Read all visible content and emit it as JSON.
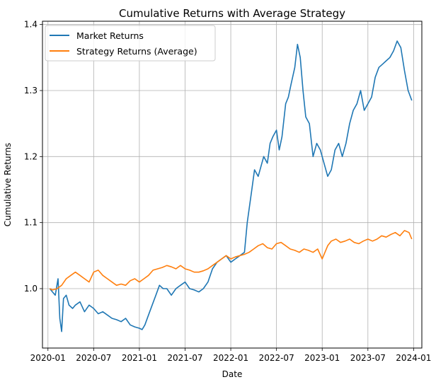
{
  "chart_data": {
    "type": "line",
    "title": "Cumulative Returns with Average Strategy",
    "xlabel": "Date",
    "ylabel": "Cumulative Returns",
    "xlim": [
      2019.94,
      2024.09
    ],
    "ylim": [
      0.91,
      1.405
    ],
    "grid": true,
    "legend_position": "top-left",
    "x_ticks": [
      {
        "value": 2020.0,
        "label": "2020-01"
      },
      {
        "value": 2020.5,
        "label": "2020-07"
      },
      {
        "value": 2021.0,
        "label": "2021-01"
      },
      {
        "value": 2021.5,
        "label": "2021-07"
      },
      {
        "value": 2022.0,
        "label": "2022-01"
      },
      {
        "value": 2022.5,
        "label": "2022-07"
      },
      {
        "value": 2023.0,
        "label": "2023-01"
      },
      {
        "value": 2023.5,
        "label": "2023-07"
      },
      {
        "value": 2024.0,
        "label": "2024-01"
      }
    ],
    "y_ticks": [
      {
        "value": 1.0,
        "label": "1.0"
      },
      {
        "value": 1.1,
        "label": "1.1"
      },
      {
        "value": 1.2,
        "label": "1.2"
      },
      {
        "value": 1.3,
        "label": "1.3"
      },
      {
        "value": 1.4,
        "label": "1.4"
      }
    ],
    "series": [
      {
        "name": "Market Returns",
        "color": "#1f77b4",
        "x": [
          2020.02,
          2020.05,
          2020.08,
          2020.11,
          2020.13,
          2020.15,
          2020.17,
          2020.2,
          2020.23,
          2020.27,
          2020.3,
          2020.35,
          2020.4,
          2020.45,
          2020.5,
          2020.55,
          2020.6,
          2020.65,
          2020.7,
          2020.75,
          2020.8,
          2020.85,
          2020.9,
          2020.95,
          2021.0,
          2021.03,
          2021.06,
          2021.1,
          2021.14,
          2021.18,
          2021.22,
          2021.26,
          2021.3,
          2021.35,
          2021.4,
          2021.45,
          2021.5,
          2021.55,
          2021.6,
          2021.65,
          2021.7,
          2021.75,
          2021.8,
          2021.85,
          2021.9,
          2021.95,
          2022.0,
          2022.05,
          2022.1,
          2022.15,
          2022.18,
          2022.2,
          2022.23,
          2022.26,
          2022.3,
          2022.33,
          2022.36,
          2022.4,
          2022.43,
          2022.46,
          2022.5,
          2022.53,
          2022.56,
          2022.6,
          2022.63,
          2022.66,
          2022.7,
          2022.73,
          2022.76,
          2022.79,
          2022.82,
          2022.86,
          2022.9,
          2022.94,
          2022.98,
          2023.02,
          2023.06,
          2023.1,
          2023.14,
          2023.18,
          2023.22,
          2023.26,
          2023.3,
          2023.34,
          2023.38,
          2023.42,
          2023.46,
          2023.5,
          2023.54,
          2023.58,
          2023.62,
          2023.66,
          2023.7,
          2023.74,
          2023.78,
          2023.82,
          2023.86,
          2023.9,
          2023.94,
          2023.98
        ],
        "values": [
          1.0,
          0.995,
          0.99,
          1.015,
          0.955,
          0.935,
          0.985,
          0.99,
          0.975,
          0.97,
          0.975,
          0.98,
          0.965,
          0.975,
          0.97,
          0.962,
          0.965,
          0.96,
          0.955,
          0.953,
          0.95,
          0.955,
          0.945,
          0.942,
          0.94,
          0.938,
          0.945,
          0.96,
          0.975,
          0.99,
          1.005,
          1.0,
          1.0,
          0.99,
          1.0,
          1.005,
          1.01,
          1.0,
          0.998,
          0.995,
          1.0,
          1.01,
          1.03,
          1.04,
          1.045,
          1.05,
          1.04,
          1.045,
          1.05,
          1.055,
          1.1,
          1.12,
          1.15,
          1.18,
          1.17,
          1.185,
          1.2,
          1.19,
          1.22,
          1.23,
          1.24,
          1.21,
          1.23,
          1.28,
          1.29,
          1.31,
          1.335,
          1.37,
          1.35,
          1.3,
          1.26,
          1.25,
          1.2,
          1.22,
          1.21,
          1.19,
          1.17,
          1.18,
          1.21,
          1.22,
          1.2,
          1.22,
          1.25,
          1.27,
          1.28,
          1.3,
          1.27,
          1.28,
          1.29,
          1.32,
          1.335,
          1.34,
          1.345,
          1.35,
          1.36,
          1.375,
          1.365,
          1.33,
          1.3,
          1.285
        ]
      },
      {
        "name": "Strategy Returns (Average)",
        "color": "#ff7f0e",
        "x": [
          2020.02,
          2020.05,
          2020.1,
          2020.15,
          2020.2,
          2020.25,
          2020.3,
          2020.35,
          2020.4,
          2020.45,
          2020.5,
          2020.55,
          2020.6,
          2020.65,
          2020.7,
          2020.75,
          2020.8,
          2020.85,
          2020.9,
          2020.95,
          2021.0,
          2021.05,
          2021.1,
          2021.15,
          2021.2,
          2021.25,
          2021.3,
          2021.35,
          2021.4,
          2021.45,
          2021.5,
          2021.55,
          2021.6,
          2021.65,
          2021.7,
          2021.75,
          2021.8,
          2021.85,
          2021.9,
          2021.95,
          2022.0,
          2022.05,
          2022.1,
          2022.15,
          2022.2,
          2022.25,
          2022.3,
          2022.35,
          2022.4,
          2022.45,
          2022.5,
          2022.55,
          2022.6,
          2022.65,
          2022.7,
          2022.75,
          2022.8,
          2022.85,
          2022.9,
          2022.95,
          2023.0,
          2023.03,
          2023.06,
          2023.1,
          2023.15,
          2023.2,
          2023.25,
          2023.3,
          2023.35,
          2023.4,
          2023.45,
          2023.5,
          2023.55,
          2023.6,
          2023.65,
          2023.7,
          2023.75,
          2023.8,
          2023.85,
          2023.9,
          2023.95,
          2023.98
        ],
        "values": [
          1.0,
          0.998,
          1.0,
          1.005,
          1.015,
          1.02,
          1.025,
          1.02,
          1.015,
          1.01,
          1.025,
          1.028,
          1.02,
          1.015,
          1.01,
          1.005,
          1.007,
          1.005,
          1.012,
          1.015,
          1.01,
          1.015,
          1.02,
          1.028,
          1.03,
          1.032,
          1.035,
          1.033,
          1.03,
          1.035,
          1.03,
          1.028,
          1.025,
          1.025,
          1.027,
          1.03,
          1.035,
          1.04,
          1.045,
          1.05,
          1.045,
          1.048,
          1.05,
          1.052,
          1.055,
          1.06,
          1.065,
          1.068,
          1.062,
          1.06,
          1.068,
          1.07,
          1.065,
          1.06,
          1.058,
          1.055,
          1.06,
          1.058,
          1.055,
          1.06,
          1.045,
          1.055,
          1.065,
          1.072,
          1.075,
          1.07,
          1.072,
          1.075,
          1.07,
          1.068,
          1.072,
          1.075,
          1.072,
          1.075,
          1.08,
          1.078,
          1.082,
          1.085,
          1.08,
          1.088,
          1.085,
          1.075
        ]
      }
    ]
  }
}
